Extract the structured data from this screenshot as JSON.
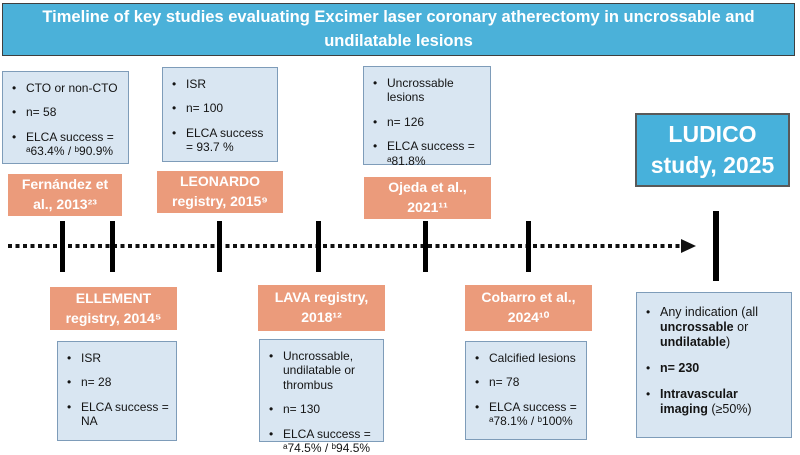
{
  "title": "Timeline of key studies evaluating Excimer laser coronary atherectomy in uncrossable and undilatable lesions",
  "colors": {
    "title_bg": "#4bb1d9",
    "label_bg": "#eb9b7b",
    "info_box_bg": "#d9e6f2",
    "info_box_border": "#7e9cb9",
    "ludico_bg": "#47b1db",
    "timeline": "#000000"
  },
  "studies_top": [
    {
      "label_lines": [
        "Fernández et",
        "al., 2013²³"
      ],
      "bullets": [
        "CTO or non-CTO",
        "n= 58",
        "ELCA success = ᵃ63.4% / ᵇ90.9%"
      ]
    },
    {
      "label_lines": [
        "LEONARDO",
        "registry, 2015⁹"
      ],
      "bullets": [
        "ISR",
        "n= 100",
        "ELCA success = 93.7 %"
      ]
    },
    {
      "label_lines": [
        "Ojeda et al.,",
        "2021¹¹"
      ],
      "bullets": [
        "Uncrossable lesions",
        "n= 126",
        "ELCA success = ᵃ81.8%"
      ]
    }
  ],
  "studies_bottom": [
    {
      "label_lines": [
        "ELLEMENT",
        "registry, 2014⁵"
      ],
      "bullets": [
        "ISR",
        "n= 28",
        "ELCA success = NA"
      ]
    },
    {
      "label_lines": [
        "LAVA registry,",
        "2018¹²"
      ],
      "bullets": [
        "Uncrossable, undilatable or thrombus",
        "n= 130",
        "ELCA success = ᵃ74.5% / ᵇ94.5%"
      ]
    },
    {
      "label_lines": [
        "Cobarro et al.,",
        "2024¹⁰"
      ],
      "bullets": [
        "Calcified lesions",
        "n= 78",
        "ELCA success = ᵃ78.1% / ᵇ100%"
      ]
    }
  ],
  "ludico": {
    "label_lines": [
      "LUDICO",
      "study, 2025"
    ],
    "details": [
      {
        "pre": "Any indication (all ",
        "bold1": "uncrossable",
        "mid": " or ",
        "bold2": "undilatable",
        "post": ")"
      },
      {
        "bold1": "n= 230"
      },
      {
        "bold1": "Intravascular imaging",
        "post": " (≥50%)"
      }
    ]
  }
}
